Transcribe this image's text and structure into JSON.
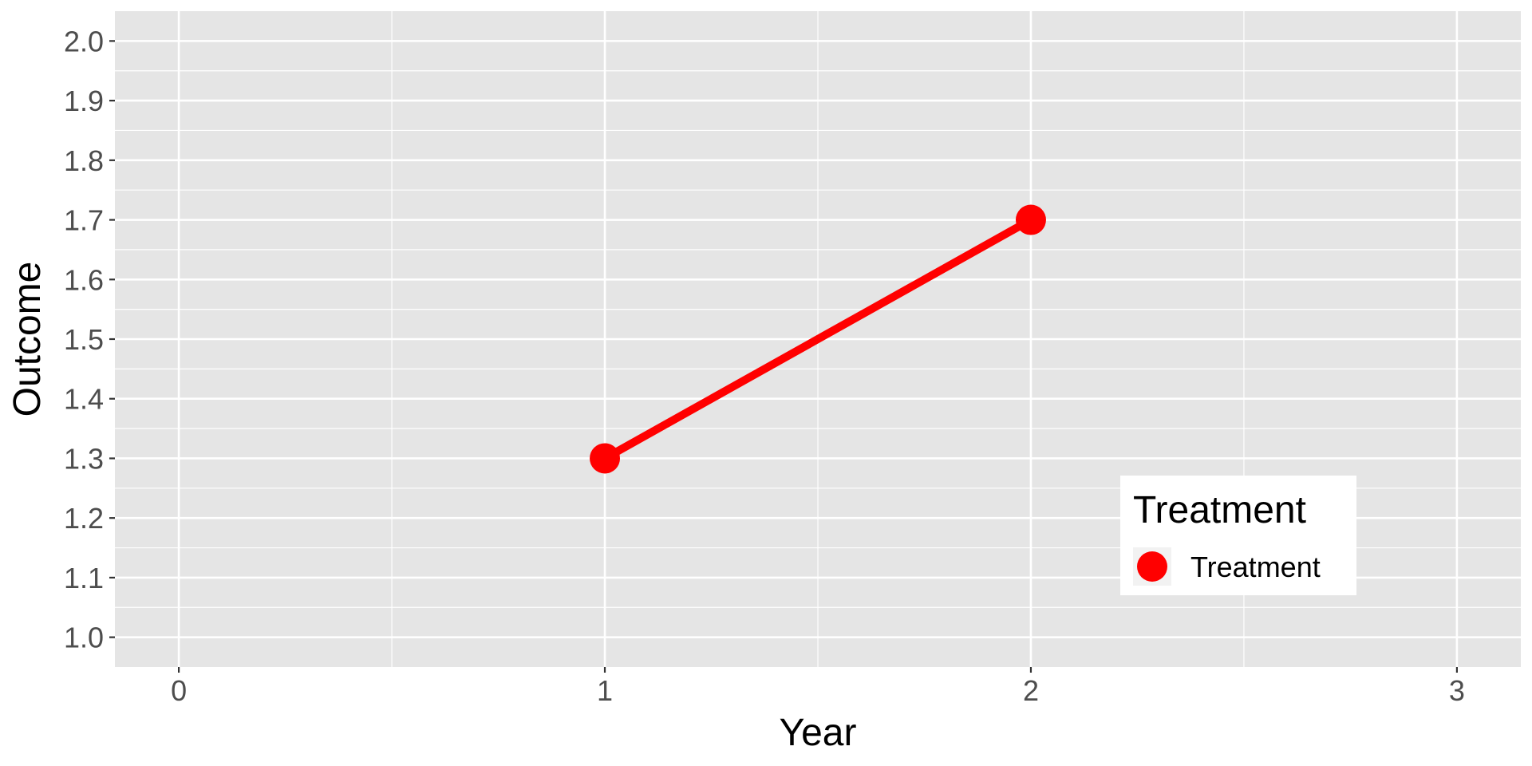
{
  "chart_data": {
    "type": "line",
    "xlabel": "Year",
    "ylabel": "Outcome",
    "xlim": [
      -0.15,
      3.15
    ],
    "ylim": [
      0.95,
      2.05
    ],
    "x_ticks": [
      0,
      1,
      2,
      3
    ],
    "x_tick_labels": [
      "0",
      "1",
      "2",
      "3"
    ],
    "x_minor_ticks": [
      0.5,
      1.5,
      2.5
    ],
    "y_ticks": [
      1.0,
      1.1,
      1.2,
      1.3,
      1.4,
      1.5,
      1.6,
      1.7,
      1.8,
      1.9,
      2.0
    ],
    "y_tick_labels": [
      "1.0",
      "1.1",
      "1.2",
      "1.3",
      "1.4",
      "1.5",
      "1.6",
      "1.7",
      "1.8",
      "1.9",
      "2.0"
    ],
    "y_minor_ticks": [
      1.05,
      1.15,
      1.25,
      1.35,
      1.45,
      1.55,
      1.65,
      1.75,
      1.85,
      1.95
    ],
    "grid": true,
    "legend": {
      "title": "Treatment",
      "placement": "bottom-right",
      "entries": [
        "Treatment"
      ]
    },
    "series": [
      {
        "name": "Treatment",
        "color": "#ff0000",
        "x": [
          1,
          2
        ],
        "y": [
          1.3,
          1.7
        ]
      }
    ]
  },
  "style": {
    "panel_background": "#e5e5e5",
    "grid_color": "#ffffff",
    "tick_color": "#333333"
  }
}
